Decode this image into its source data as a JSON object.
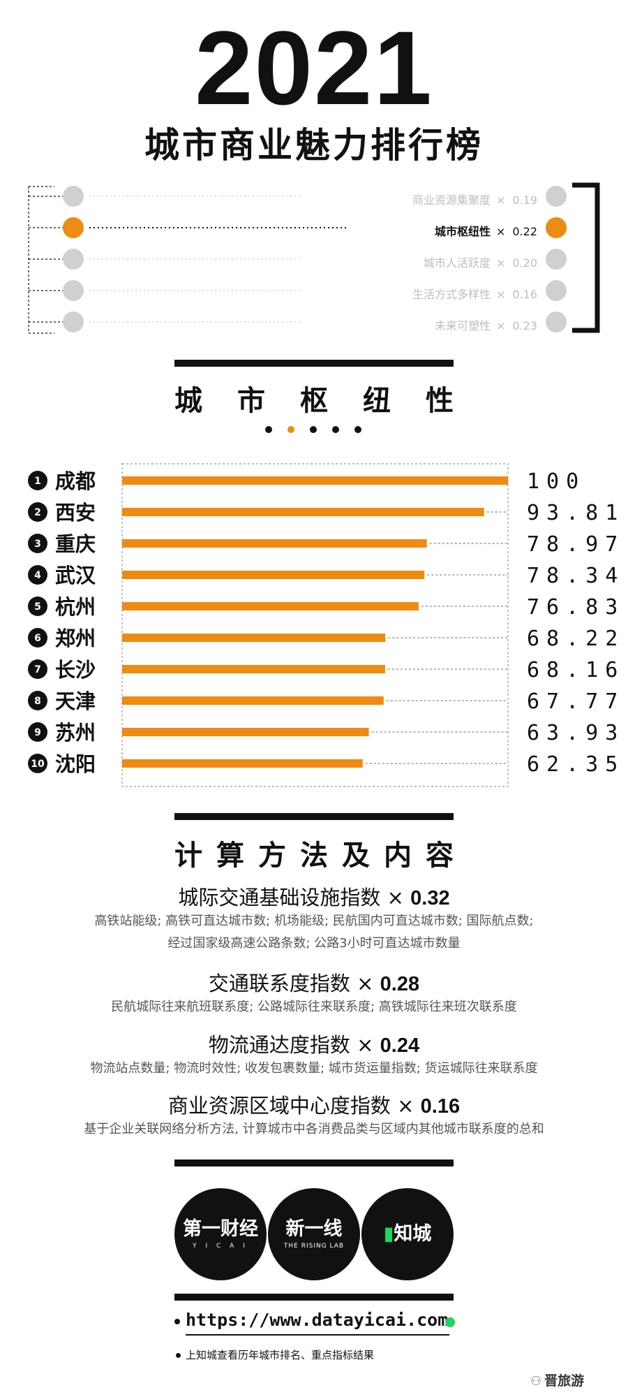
{
  "header": {
    "year": "2021",
    "title": "城市商业魅力排行榜"
  },
  "factors": [
    {
      "label": "商业资源集聚度",
      "times": "×",
      "weight": "0.19",
      "active": false
    },
    {
      "label": "城市枢纽性",
      "times": "×",
      "weight": "0.22",
      "active": true
    },
    {
      "label": "城市人活跃度",
      "times": "×",
      "weight": "0.20",
      "active": false
    },
    {
      "label": "生活方式多样性",
      "times": "×",
      "weight": "0.16",
      "active": false
    },
    {
      "label": "未来可塑性",
      "times": "×",
      "weight": "0.23",
      "active": false
    }
  ],
  "section1": {
    "title": "城市枢纽性",
    "dots_active_index": 1
  },
  "chart_data": {
    "type": "bar",
    "orientation": "horizontal",
    "categories": [
      "成都",
      "西安",
      "重庆",
      "武汉",
      "杭州",
      "郑州",
      "长沙",
      "天津",
      "苏州",
      "沈阳"
    ],
    "ranks": [
      "1",
      "2",
      "3",
      "4",
      "5",
      "6",
      "7",
      "8",
      "9",
      "10"
    ],
    "values": [
      100,
      93.81,
      78.97,
      78.34,
      76.83,
      68.22,
      68.16,
      67.77,
      63.93,
      62.35
    ],
    "value_labels": [
      "100",
      "93.81",
      "78.97",
      "78.34",
      "76.83",
      "68.22",
      "68.16",
      "67.77",
      "63.93",
      "62.35"
    ],
    "xlim": [
      0,
      100
    ],
    "bar_color": "#ef8a12",
    "grid": false
  },
  "section2": {
    "title": "计算方法及内容"
  },
  "methods": [
    {
      "name": "城际交通基础设施指数",
      "times": "×",
      "weight": "0.32",
      "desc": [
        "高铁站能级; 高铁可直达城市数; 机场能级; 民航国内可直达城市数; 国际航点数;",
        "经过国家级高速公路条数; 公路3小时可直达城市数量"
      ]
    },
    {
      "name": "交通联系度指数",
      "times": "×",
      "weight": "0.28",
      "desc": [
        "民航城际往来航班联系度; 公路城际往来联系度; 高铁城际往来班次联系度"
      ]
    },
    {
      "name": "物流通达度指数",
      "times": "×",
      "weight": "0.24",
      "desc": [
        "物流站点数量; 物流时效性; 收发包裹数量; 城市货运量指数; 货运城际往来联系度"
      ]
    },
    {
      "name": "商业资源区域中心度指数",
      "times": "×",
      "weight": "0.16",
      "desc": [
        "基于企业关联网络分析方法, 计算城市中各消费品类与区域内其他城市联系度的总和"
      ]
    }
  ],
  "logos": [
    {
      "text": "第一财经",
      "sub": "Y I C A I"
    },
    {
      "text": "新一线",
      "sub": "THE RISING LAB"
    },
    {
      "text": "知城",
      "sub": ""
    }
  ],
  "footer": {
    "url": "https://www.datayicai.com",
    "note": "上知城查看历年城市排名、重点指标结果",
    "watermark": "晋旅游"
  },
  "colors": {
    "accent": "#ef8a12",
    "gray": "#d0d0d0",
    "dark": "#111111",
    "green": "#1ed760"
  }
}
